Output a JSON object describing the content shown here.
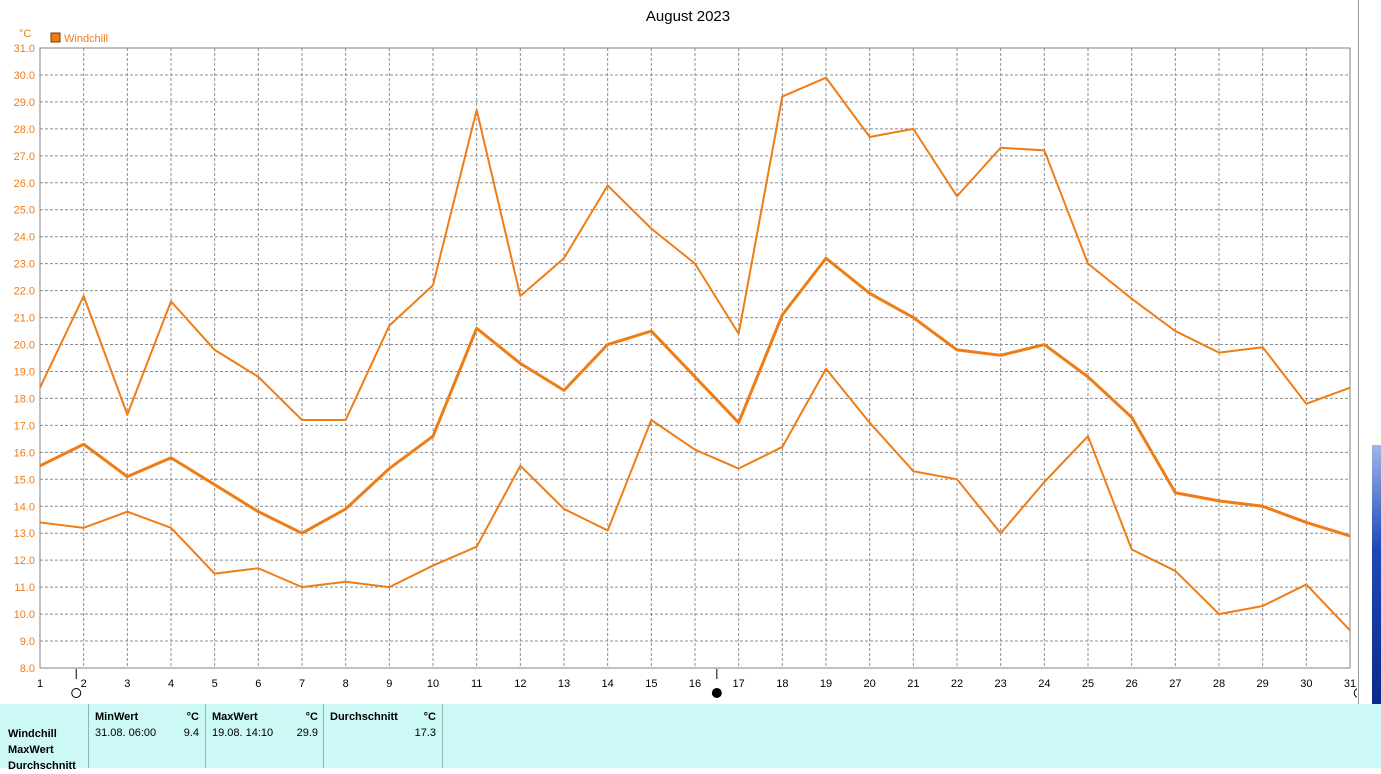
{
  "chart_data": {
    "type": "line",
    "title": "August 2023",
    "ylabel": "°C",
    "legend": [
      {
        "name": "Windchill",
        "color": "#ef7d16",
        "position": "top-left"
      }
    ],
    "ylim": [
      8.0,
      31.0
    ],
    "yticks": [
      "8.0",
      "9.0",
      "10.0",
      "11.0",
      "12.0",
      "13.0",
      "14.0",
      "15.0",
      "16.0",
      "17.0",
      "18.0",
      "19.0",
      "20.0",
      "21.0",
      "22.0",
      "23.0",
      "24.0",
      "25.0",
      "26.0",
      "27.0",
      "28.0",
      "29.0",
      "30.0",
      "31.0"
    ],
    "x": [
      1,
      2,
      3,
      4,
      5,
      6,
      7,
      8,
      9,
      10,
      11,
      12,
      13,
      14,
      15,
      16,
      17,
      18,
      19,
      20,
      21,
      22,
      23,
      24,
      25,
      26,
      27,
      28,
      29,
      30,
      31
    ],
    "grid": true,
    "series": [
      {
        "role": "max",
        "values": [
          18.4,
          21.8,
          17.4,
          21.6,
          19.8,
          18.8,
          17.2,
          17.2,
          20.7,
          22.2,
          28.7,
          21.8,
          23.2,
          25.9,
          24.3,
          23.0,
          20.4,
          29.2,
          29.9,
          27.7,
          28.0,
          25.5,
          27.3,
          27.2,
          23.0,
          21.7,
          20.5,
          19.7,
          19.9,
          17.8,
          18.4
        ]
      },
      {
        "role": "average",
        "values": [
          15.5,
          16.3,
          15.1,
          15.8,
          14.8,
          13.8,
          13.0,
          13.9,
          15.4,
          16.6,
          20.6,
          19.3,
          18.3,
          20.0,
          20.5,
          18.8,
          17.1,
          21.1,
          23.2,
          21.9,
          21.0,
          19.8,
          19.6,
          20.0,
          18.8,
          17.3,
          14.5,
          14.2,
          14.0,
          13.4,
          12.9
        ]
      },
      {
        "role": "min",
        "values": [
          13.4,
          13.2,
          13.8,
          13.2,
          11.5,
          11.7,
          11.0,
          11.2,
          11.0,
          11.8,
          12.5,
          15.5,
          13.9,
          13.1,
          17.2,
          16.1,
          15.4,
          16.2,
          19.1,
          17.1,
          15.3,
          15.0,
          13.0,
          14.9,
          16.6,
          12.4,
          11.6,
          10.0,
          10.3,
          11.1,
          9.4
        ]
      }
    ],
    "moon_markers": [
      {
        "day_position": 1.83,
        "phase": "full"
      },
      {
        "day_position": 16.5,
        "phase": "new"
      },
      {
        "day_position": 31.2,
        "phase": "full"
      }
    ]
  },
  "stats": {
    "row_labels": [
      "Windchill",
      "MaxWert",
      "Durchschnitt"
    ],
    "columns": [
      {
        "header": "MinWert",
        "unit": "°C",
        "date": "31.08.  06:00",
        "value": "9.4"
      },
      {
        "header": "MaxWert",
        "unit": "°C",
        "date": "19.08.  14:10",
        "value": "29.9"
      },
      {
        "header": "Durchschnitt",
        "unit": "°C",
        "date": "",
        "value": "17.3"
      }
    ]
  }
}
